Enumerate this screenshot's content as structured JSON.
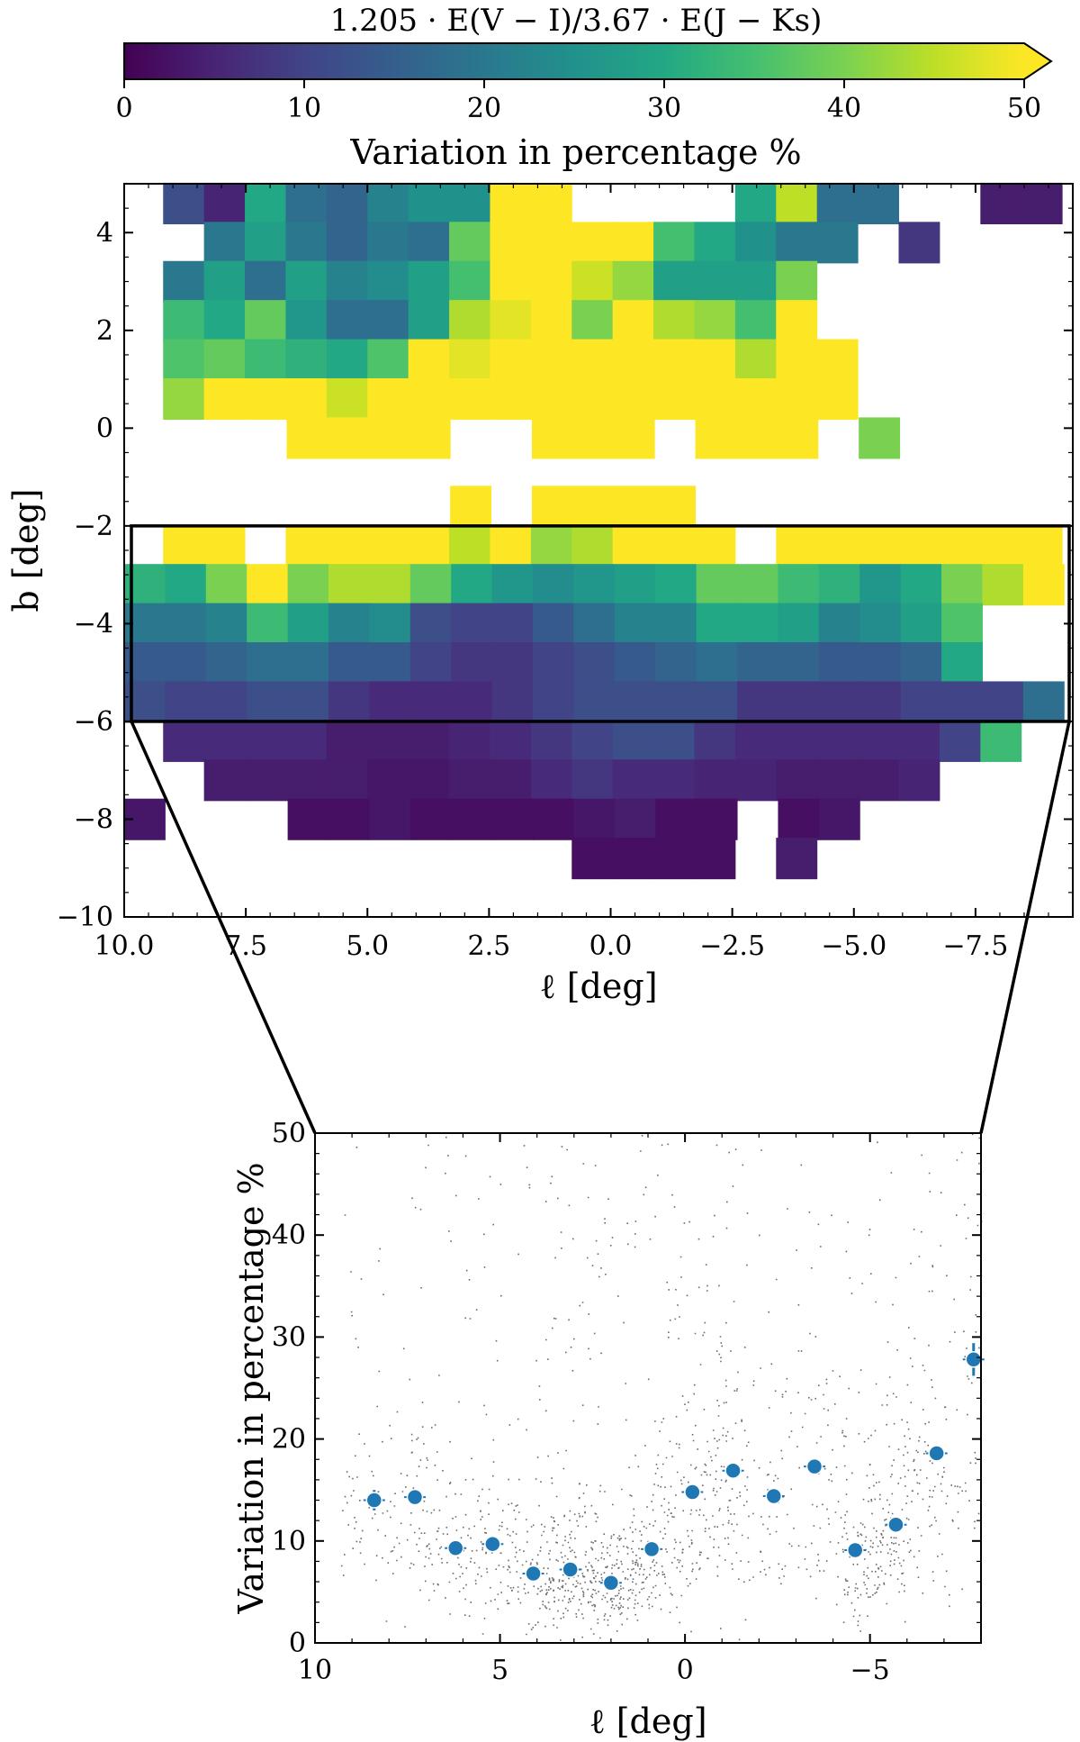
{
  "figure": {
    "colorbar": {
      "title": "1.205 · E(V − I)/3.67 · E(J − Ks)",
      "label": "Variation in percentage %",
      "range": [
        0,
        50
      ],
      "ticks": [
        "0",
        "10",
        "20",
        "30",
        "40",
        "50"
      ],
      "extend": "max",
      "colormap": "viridis"
    },
    "highlight_box": {
      "l_range": [
        10.0,
        -9.5
      ],
      "b_range": [
        -2,
        -6
      ]
    }
  },
  "chart_data": [
    {
      "type": "heatmap",
      "xlabel": "ℓ [deg]",
      "ylabel": "b [deg]",
      "xlim": [
        10.0,
        -9.5
      ],
      "ylim": [
        -10,
        5
      ],
      "x_ticks": [
        "10.0",
        "7.5",
        "5.0",
        "2.5",
        "0.0",
        "−2.5",
        "−5.0",
        "−7.5"
      ],
      "y_ticks": [
        "−10",
        "−8",
        "−6",
        "−4",
        "−2",
        "0",
        "2",
        "4"
      ],
      "bin_width_l": 0.84,
      "bin_height_b": 0.84,
      "cell_key": "each row lists the value (0–50 %) for consecutive ℓ bins starting at l_start; null = no data",
      "rows": [
        {
          "b": 4.6,
          "l_start": 9.2,
          "values": [
            12,
            5,
            30,
            18,
            16,
            22,
            25,
            25,
            50,
            50,
            null,
            null,
            null,
            null,
            30,
            45,
            18,
            18,
            null,
            null,
            4,
            4
          ]
        },
        {
          "b": 3.8,
          "l_start": 9.2,
          "values": [
            null,
            20,
            28,
            20,
            16,
            20,
            18,
            38,
            50,
            50,
            50,
            50,
            35,
            30,
            25,
            20,
            20,
            null,
            8
          ]
        },
        {
          "b": 3.0,
          "l_start": 9.2,
          "values": [
            20,
            28,
            18,
            28,
            22,
            24,
            28,
            35,
            50,
            50,
            46,
            42,
            28,
            28,
            28,
            40
          ]
        },
        {
          "b": 2.2,
          "l_start": 9.2,
          "values": [
            34,
            30,
            38,
            26,
            18,
            18,
            28,
            44,
            48,
            50,
            40,
            50,
            44,
            42,
            35,
            50
          ]
        },
        {
          "b": 1.4,
          "l_start": 9.2,
          "values": [
            36,
            38,
            34,
            32,
            30,
            36,
            50,
            48,
            50,
            50,
            50,
            50,
            50,
            50,
            44,
            50,
            50
          ]
        },
        {
          "b": 0.6,
          "l_start": 9.2,
          "values": [
            42,
            50,
            50,
            50,
            46,
            50,
            50,
            50,
            50,
            50,
            50,
            50,
            50,
            50,
            50,
            50,
            50
          ]
        },
        {
          "b": -0.2,
          "l_start": 7.5,
          "values": [
            null,
            50,
            50,
            50,
            50,
            null,
            null,
            50,
            50,
            50,
            null,
            50,
            50,
            50,
            null,
            40
          ]
        },
        {
          "b": -1.6,
          "l_start": 3.3,
          "values": [
            50,
            null,
            50,
            50,
            50,
            50,
            null
          ]
        },
        {
          "b": -2.4,
          "l_start": 9.2,
          "values": [
            50,
            50,
            null,
            50,
            50,
            50,
            50,
            45,
            50,
            42,
            44,
            50,
            50,
            50,
            null,
            50,
            50,
            50,
            50,
            50,
            50,
            50
          ]
        },
        {
          "b": -3.2,
          "l_start": 10.0,
          "values": [
            32,
            30,
            40,
            50,
            40,
            44,
            44,
            38,
            30,
            26,
            24,
            26,
            28,
            30,
            38,
            38,
            34,
            32,
            26,
            30,
            40,
            44,
            50
          ]
        },
        {
          "b": -4.0,
          "l_start": 10.0,
          "values": [
            20,
            20,
            22,
            34,
            28,
            22,
            24,
            12,
            10,
            10,
            14,
            18,
            22,
            22,
            30,
            30,
            28,
            22,
            24,
            28,
            36
          ]
        },
        {
          "b": -4.8,
          "l_start": 10.0,
          "values": [
            14,
            14,
            16,
            18,
            18,
            14,
            14,
            10,
            8,
            8,
            10,
            12,
            14,
            16,
            18,
            16,
            16,
            14,
            14,
            16,
            30
          ]
        },
        {
          "b": -5.6,
          "l_start": 10.0,
          "values": [
            12,
            10,
            10,
            12,
            12,
            8,
            6,
            6,
            6,
            8,
            10,
            12,
            12,
            12,
            12,
            8,
            8,
            8,
            8,
            10,
            10,
            10,
            18
          ]
        },
        {
          "b": -6.4,
          "l_start": 9.2,
          "values": [
            6,
            6,
            6,
            6,
            4,
            4,
            4,
            5,
            6,
            8,
            10,
            12,
            12,
            8,
            6,
            6,
            6,
            6,
            6,
            10,
            34
          ]
        },
        {
          "b": -7.2,
          "l_start": 9.2,
          "values": [
            null,
            4,
            4,
            4,
            4,
            3,
            3,
            4,
            4,
            6,
            8,
            6,
            6,
            5,
            5,
            4,
            4,
            4,
            5
          ]
        },
        {
          "b": -8.0,
          "l_start": 10.0,
          "values": [
            3,
            null,
            null,
            null,
            2,
            2,
            3,
            2,
            2,
            2,
            2,
            3,
            4,
            2,
            2,
            null,
            2,
            3
          ]
        },
        {
          "b": -8.8,
          "l_start": 0.8,
          "values": [
            2,
            2,
            2,
            2,
            null,
            4
          ]
        }
      ]
    },
    {
      "type": "scatter",
      "xlabel": "ℓ [deg]",
      "ylabel": "Variation in percentage %",
      "xlim": [
        10,
        -8
      ],
      "ylim": [
        0,
        50
      ],
      "x_ticks": [
        "10",
        "5",
        "0",
        "−5"
      ],
      "y_ticks": [
        "0",
        "10",
        "20",
        "30",
        "40",
        "50"
      ],
      "series": [
        {
          "style": "binned mean with error bars",
          "color": "#1f77b4",
          "points": [
            {
              "x": 8.4,
              "y": 14.0,
              "yerr": 1.0
            },
            {
              "x": 7.3,
              "y": 14.3,
              "yerr": 0.6
            },
            {
              "x": 6.2,
              "y": 9.3,
              "yerr": 0.5
            },
            {
              "x": 5.2,
              "y": 9.7,
              "yerr": 0.5
            },
            {
              "x": 4.1,
              "y": 6.8,
              "yerr": 0.4
            },
            {
              "x": 3.1,
              "y": 7.2,
              "yerr": 0.4
            },
            {
              "x": 2.0,
              "y": 5.9,
              "yerr": 0.4
            },
            {
              "x": 0.9,
              "y": 9.2,
              "yerr": 0.4
            },
            {
              "x": -0.2,
              "y": 14.8,
              "yerr": 0.5
            },
            {
              "x": -1.3,
              "y": 16.9,
              "yerr": 0.5
            },
            {
              "x": -2.4,
              "y": 14.4,
              "yerr": 0.5
            },
            {
              "x": -3.5,
              "y": 17.3,
              "yerr": 0.5
            },
            {
              "x": -4.6,
              "y": 9.1,
              "yerr": 0.4
            },
            {
              "x": -5.7,
              "y": 11.6,
              "yerr": 0.5
            },
            {
              "x": -6.8,
              "y": 18.6,
              "yerr": 0.6
            },
            {
              "x": -7.8,
              "y": 27.8,
              "yerr": 1.6
            }
          ]
        }
      ]
    }
  ]
}
